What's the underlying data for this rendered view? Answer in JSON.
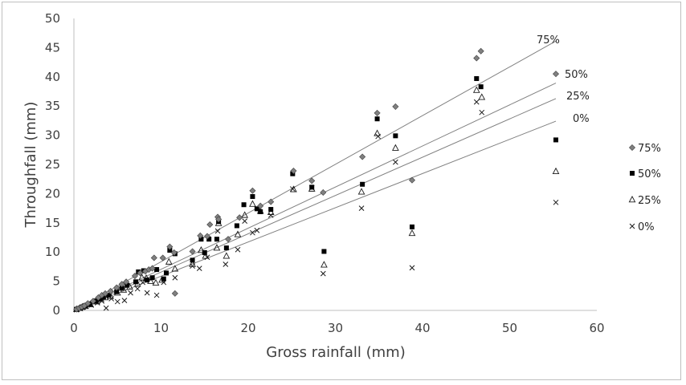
{
  "chart_data": {
    "type": "scatter",
    "title": "",
    "xlabel": "Gross rainfall (mm)",
    "ylabel": "Throughfall (mm)",
    "xlim": [
      0,
      60
    ],
    "ylim": [
      0,
      50
    ],
    "xticks": [
      0,
      10,
      20,
      30,
      40,
      50,
      60
    ],
    "yticks": [
      0,
      5,
      10,
      15,
      20,
      25,
      30,
      35,
      40,
      45,
      50
    ],
    "grid": false,
    "legend_position": "right",
    "series": [
      {
        "name": "75%",
        "marker": "diamond",
        "color": "#7f7f7f",
        "points": [
          [
            0.3,
            0.2
          ],
          [
            0.6,
            0.4
          ],
          [
            0.9,
            0.6
          ],
          [
            1.2,
            0.8
          ],
          [
            1.6,
            1.2
          ],
          [
            2.2,
            1.6
          ],
          [
            2.8,
            2.2
          ],
          [
            3.2,
            2.6
          ],
          [
            3.6,
            2.9
          ],
          [
            4.2,
            3.3
          ],
          [
            4.9,
            3.9
          ],
          [
            5.5,
            4.5
          ],
          [
            6.0,
            4.9
          ],
          [
            7.0,
            5.9
          ],
          [
            7.6,
            6.4
          ],
          [
            8.2,
            6.7
          ],
          [
            8.6,
            7.0
          ],
          [
            9.0,
            7.2
          ],
          [
            9.2,
            9.0
          ],
          [
            10.2,
            9.0
          ],
          [
            11.0,
            10.9
          ],
          [
            11.5,
            9.9
          ],
          [
            11.6,
            2.9
          ],
          [
            13.6,
            10.1
          ],
          [
            14.5,
            12.8
          ],
          [
            15.3,
            12.7
          ],
          [
            15.6,
            14.7
          ],
          [
            16.5,
            16.0
          ],
          [
            16.6,
            15.6
          ],
          [
            17.7,
            12.2
          ],
          [
            19.0,
            15.9
          ],
          [
            20.5,
            20.5
          ],
          [
            21.4,
            17.9
          ],
          [
            22.6,
            18.6
          ],
          [
            25.2,
            23.9
          ],
          [
            27.3,
            22.2
          ],
          [
            28.6,
            20.2
          ],
          [
            33.1,
            26.3
          ],
          [
            34.8,
            33.8
          ],
          [
            36.9,
            34.9
          ],
          [
            38.8,
            22.3
          ],
          [
            46.2,
            43.2
          ],
          [
            46.7,
            44.4
          ],
          [
            55.3,
            40.5
          ]
        ]
      },
      {
        "name": "50%",
        "marker": "square",
        "color": "#000000",
        "points": [
          [
            0.3,
            0.2
          ],
          [
            0.7,
            0.4
          ],
          [
            1.0,
            0.6
          ],
          [
            1.3,
            0.8
          ],
          [
            1.8,
            1.1
          ],
          [
            2.5,
            1.6
          ],
          [
            3.0,
            2.0
          ],
          [
            3.4,
            2.3
          ],
          [
            4.0,
            2.6
          ],
          [
            4.9,
            3.2
          ],
          [
            5.5,
            3.8
          ],
          [
            6.1,
            4.3
          ],
          [
            7.1,
            4.9
          ],
          [
            7.4,
            6.6
          ],
          [
            8.0,
            6.8
          ],
          [
            8.4,
            5.2
          ],
          [
            9.0,
            5.6
          ],
          [
            9.5,
            7.0
          ],
          [
            10.3,
            5.4
          ],
          [
            10.6,
            6.4
          ],
          [
            11.0,
            10.3
          ],
          [
            11.6,
            9.7
          ],
          [
            13.6,
            8.6
          ],
          [
            14.6,
            12.2
          ],
          [
            15.0,
            9.9
          ],
          [
            15.5,
            12.2
          ],
          [
            16.4,
            12.2
          ],
          [
            16.6,
            15.2
          ],
          [
            17.5,
            10.7
          ],
          [
            18.7,
            14.5
          ],
          [
            19.5,
            18.1
          ],
          [
            20.5,
            19.5
          ],
          [
            21.0,
            17.4
          ],
          [
            21.4,
            16.9
          ],
          [
            22.6,
            17.3
          ],
          [
            25.1,
            23.4
          ],
          [
            27.3,
            21.1
          ],
          [
            28.7,
            10.1
          ],
          [
            33.1,
            21.6
          ],
          [
            34.8,
            32.8
          ],
          [
            36.9,
            29.9
          ],
          [
            38.8,
            14.3
          ],
          [
            46.2,
            39.7
          ],
          [
            46.7,
            38.3
          ],
          [
            55.3,
            29.2
          ]
        ]
      },
      {
        "name": "25%",
        "marker": "triangle",
        "color": "#000000",
        "points": [
          [
            0.3,
            0.2
          ],
          [
            0.7,
            0.4
          ],
          [
            1.0,
            0.6
          ],
          [
            1.3,
            0.7
          ],
          [
            1.9,
            1.0
          ],
          [
            2.6,
            1.5
          ],
          [
            3.1,
            1.9
          ],
          [
            3.6,
            2.2
          ],
          [
            4.2,
            2.4
          ],
          [
            5.0,
            3.0
          ],
          [
            5.7,
            3.5
          ],
          [
            6.4,
            4.0
          ],
          [
            7.3,
            4.5
          ],
          [
            7.8,
            5.6
          ],
          [
            8.3,
            5.5
          ],
          [
            8.8,
            5.0
          ],
          [
            9.4,
            4.7
          ],
          [
            10.1,
            5.2
          ],
          [
            10.9,
            8.3
          ],
          [
            11.6,
            7.1
          ],
          [
            13.6,
            7.9
          ],
          [
            14.6,
            10.3
          ],
          [
            15.1,
            9.3
          ],
          [
            16.4,
            10.7
          ],
          [
            16.6,
            14.9
          ],
          [
            17.5,
            9.3
          ],
          [
            18.8,
            13.0
          ],
          [
            19.6,
            16.3
          ],
          [
            20.5,
            18.2
          ],
          [
            21.4,
            17.0
          ],
          [
            22.6,
            16.8
          ],
          [
            25.2,
            20.7
          ],
          [
            27.3,
            20.8
          ],
          [
            28.7,
            7.8
          ],
          [
            33.0,
            20.3
          ],
          [
            34.8,
            30.3
          ],
          [
            36.9,
            27.8
          ],
          [
            38.8,
            13.2
          ],
          [
            46.2,
            37.7
          ],
          [
            46.8,
            36.5
          ],
          [
            55.3,
            23.8
          ]
        ]
      },
      {
        "name": "0%",
        "marker": "x",
        "color": "#000000",
        "points": [
          [
            0.3,
            0.1
          ],
          [
            0.7,
            0.3
          ],
          [
            1.0,
            0.5
          ],
          [
            1.4,
            0.7
          ],
          [
            2.0,
            0.9
          ],
          [
            2.7,
            1.3
          ],
          [
            3.2,
            1.6
          ],
          [
            3.7,
            0.4
          ],
          [
            4.3,
            2.0
          ],
          [
            5.0,
            1.5
          ],
          [
            5.8,
            1.7
          ],
          [
            6.5,
            3.0
          ],
          [
            7.3,
            3.7
          ],
          [
            7.9,
            4.8
          ],
          [
            8.4,
            3.0
          ],
          [
            9.5,
            2.6
          ],
          [
            10.3,
            4.8
          ],
          [
            11.6,
            5.6
          ],
          [
            13.6,
            7.6
          ],
          [
            14.4,
            7.2
          ],
          [
            15.3,
            9.1
          ],
          [
            16.5,
            13.6
          ],
          [
            17.4,
            7.9
          ],
          [
            18.8,
            10.4
          ],
          [
            19.6,
            15.3
          ],
          [
            20.5,
            13.3
          ],
          [
            21.0,
            13.7
          ],
          [
            22.6,
            16.3
          ],
          [
            25.1,
            20.8
          ],
          [
            27.3,
            21.0
          ],
          [
            28.6,
            6.3
          ],
          [
            33.0,
            17.5
          ],
          [
            34.9,
            29.8
          ],
          [
            36.9,
            25.4
          ],
          [
            38.8,
            7.3
          ],
          [
            46.2,
            35.7
          ],
          [
            46.8,
            33.9
          ],
          [
            55.3,
            18.5
          ]
        ]
      }
    ],
    "trendlines": [
      {
        "label": "75%",
        "slope": 0.834,
        "intercept": 0
      },
      {
        "label": "50%",
        "slope": 0.704,
        "intercept": 0
      },
      {
        "label": "25%",
        "slope": 0.656,
        "intercept": 0
      },
      {
        "label": "0%",
        "slope": 0.586,
        "intercept": 0
      }
    ]
  }
}
